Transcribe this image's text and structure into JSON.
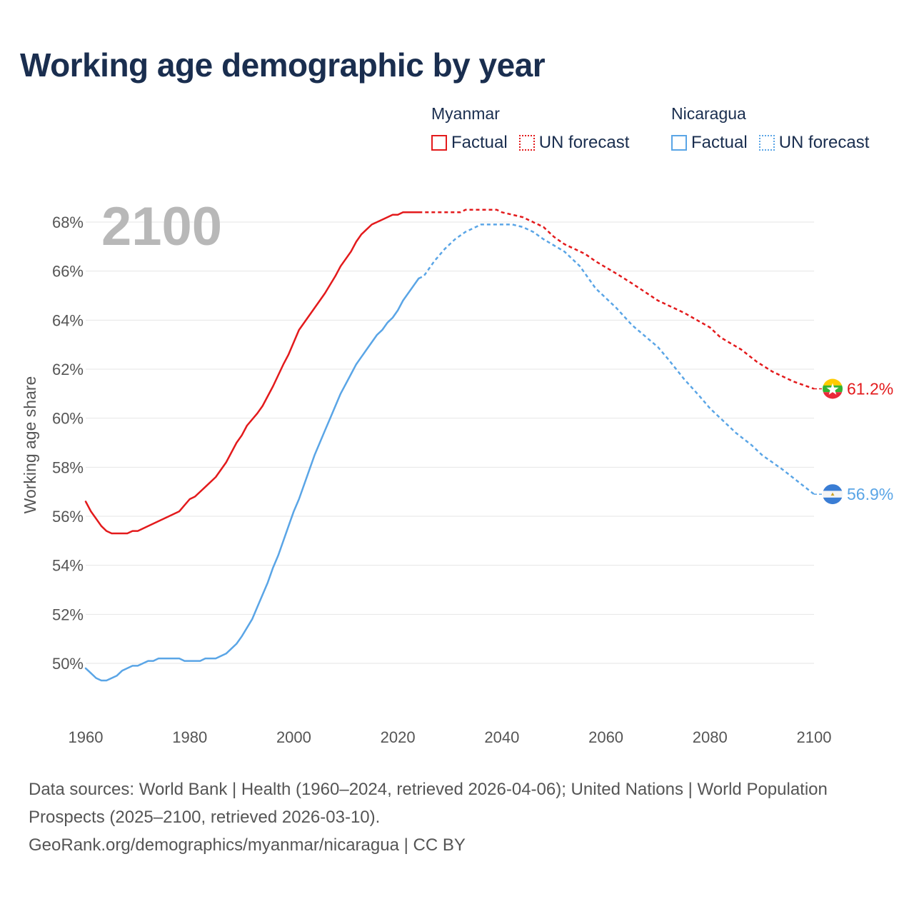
{
  "title": "Working age demographic by year",
  "legend": {
    "groups": [
      {
        "country": "Myanmar",
        "factual_label": "Factual",
        "forecast_label": "UN forecast",
        "color": "#e31a1c"
      },
      {
        "country": "Nicaragua",
        "factual_label": "Factual",
        "forecast_label": "UN forecast",
        "color": "#5aa5e6"
      }
    ]
  },
  "footer": {
    "sources": "Data sources: World Bank | Health (1960–2024, retrieved 2026-04-06); United Nations | World Population Prospects (2025–2100, retrieved 2026-03-10).",
    "link": "GeoRank.org/demographics/myanmar/nicaragua | CC BY"
  },
  "chart_data": {
    "type": "line",
    "title": "Working age demographic by year",
    "ylabel": "Working age share",
    "xlabel": "",
    "year_label": "2100",
    "xlim": [
      1960,
      2100
    ],
    "ylim": [
      48,
      70
    ],
    "x_ticks": [
      1960,
      1980,
      2000,
      2020,
      2040,
      2060,
      2080,
      2100
    ],
    "x_tick_labels": [
      "1960",
      "1980",
      "2000",
      "2020",
      "2040",
      "2060",
      "2080",
      "2100"
    ],
    "y_ticks": [
      50,
      52,
      54,
      56,
      58,
      60,
      62,
      64,
      66,
      68
    ],
    "y_tick_labels": [
      "50%",
      "52%",
      "54%",
      "56%",
      "58%",
      "60%",
      "62%",
      "64%",
      "66%",
      "68%"
    ],
    "factual_end_year": 2024,
    "series": [
      {
        "name": "Myanmar",
        "color": "#e31a1c",
        "end_label": "61.2%",
        "points": [
          [
            1960,
            56.6
          ],
          [
            1961,
            56.2
          ],
          [
            1962,
            55.9
          ],
          [
            1963,
            55.6
          ],
          [
            1964,
            55.4
          ],
          [
            1965,
            55.3
          ],
          [
            1966,
            55.3
          ],
          [
            1967,
            55.3
          ],
          [
            1968,
            55.3
          ],
          [
            1969,
            55.4
          ],
          [
            1970,
            55.4
          ],
          [
            1972,
            55.6
          ],
          [
            1974,
            55.8
          ],
          [
            1976,
            56.0
          ],
          [
            1978,
            56.2
          ],
          [
            1980,
            56.7
          ],
          [
            1981,
            56.8
          ],
          [
            1983,
            57.2
          ],
          [
            1985,
            57.6
          ],
          [
            1987,
            58.2
          ],
          [
            1989,
            59.0
          ],
          [
            1990,
            59.3
          ],
          [
            1991,
            59.7
          ],
          [
            1993,
            60.2
          ],
          [
            1994,
            60.5
          ],
          [
            1996,
            61.3
          ],
          [
            1998,
            62.2
          ],
          [
            1999,
            62.6
          ],
          [
            2000,
            63.1
          ],
          [
            2001,
            63.6
          ],
          [
            2003,
            64.2
          ],
          [
            2005,
            64.8
          ],
          [
            2006,
            65.1
          ],
          [
            2008,
            65.8
          ],
          [
            2009,
            66.2
          ],
          [
            2011,
            66.8
          ],
          [
            2012,
            67.2
          ],
          [
            2013,
            67.5
          ],
          [
            2015,
            67.9
          ],
          [
            2017,
            68.1
          ],
          [
            2019,
            68.3
          ],
          [
            2020,
            68.3
          ],
          [
            2021,
            68.4
          ],
          [
            2024,
            68.4
          ],
          [
            2032,
            68.4
          ],
          [
            2033,
            68.5
          ],
          [
            2039,
            68.5
          ],
          [
            2040,
            68.4
          ],
          [
            2044,
            68.2
          ],
          [
            2048,
            67.8
          ],
          [
            2050,
            67.4
          ],
          [
            2052,
            67.1
          ],
          [
            2056,
            66.7
          ],
          [
            2058,
            66.4
          ],
          [
            2062,
            65.9
          ],
          [
            2065,
            65.5
          ],
          [
            2070,
            64.8
          ],
          [
            2075,
            64.3
          ],
          [
            2080,
            63.7
          ],
          [
            2082,
            63.3
          ],
          [
            2086,
            62.8
          ],
          [
            2089,
            62.3
          ],
          [
            2092,
            61.9
          ],
          [
            2096,
            61.5
          ],
          [
            2100,
            61.2
          ]
        ]
      },
      {
        "name": "Nicaragua",
        "color": "#5aa5e6",
        "end_label": "56.9%",
        "points": [
          [
            1960,
            49.8
          ],
          [
            1961,
            49.6
          ],
          [
            1962,
            49.4
          ],
          [
            1963,
            49.3
          ],
          [
            1964,
            49.3
          ],
          [
            1966,
            49.5
          ],
          [
            1967,
            49.7
          ],
          [
            1969,
            49.9
          ],
          [
            1970,
            49.9
          ],
          [
            1972,
            50.1
          ],
          [
            1973,
            50.1
          ],
          [
            1974,
            50.2
          ],
          [
            1978,
            50.2
          ],
          [
            1979,
            50.1
          ],
          [
            1982,
            50.1
          ],
          [
            1983,
            50.2
          ],
          [
            1985,
            50.2
          ],
          [
            1987,
            50.4
          ],
          [
            1989,
            50.8
          ],
          [
            1990,
            51.1
          ],
          [
            1992,
            51.8
          ],
          [
            1993,
            52.3
          ],
          [
            1995,
            53.3
          ],
          [
            1996,
            53.9
          ],
          [
            1997,
            54.4
          ],
          [
            1999,
            55.6
          ],
          [
            2000,
            56.2
          ],
          [
            2001,
            56.7
          ],
          [
            2003,
            57.9
          ],
          [
            2004,
            58.5
          ],
          [
            2006,
            59.5
          ],
          [
            2007,
            60.0
          ],
          [
            2009,
            61.0
          ],
          [
            2011,
            61.8
          ],
          [
            2012,
            62.2
          ],
          [
            2014,
            62.8
          ],
          [
            2016,
            63.4
          ],
          [
            2017,
            63.6
          ],
          [
            2018,
            63.9
          ],
          [
            2019,
            64.1
          ],
          [
            2020,
            64.4
          ],
          [
            2021,
            64.8
          ],
          [
            2023,
            65.4
          ],
          [
            2024,
            65.7
          ],
          [
            2025,
            65.8
          ],
          [
            2027,
            66.4
          ],
          [
            2029,
            66.9
          ],
          [
            2031,
            67.3
          ],
          [
            2033,
            67.6
          ],
          [
            2035,
            67.8
          ],
          [
            2036,
            67.9
          ],
          [
            2042,
            67.9
          ],
          [
            2044,
            67.8
          ],
          [
            2046,
            67.6
          ],
          [
            2048,
            67.3
          ],
          [
            2052,
            66.8
          ],
          [
            2055,
            66.2
          ],
          [
            2058,
            65.3
          ],
          [
            2062,
            64.5
          ],
          [
            2065,
            63.8
          ],
          [
            2070,
            62.9
          ],
          [
            2072,
            62.4
          ],
          [
            2075,
            61.6
          ],
          [
            2078,
            60.9
          ],
          [
            2080,
            60.4
          ],
          [
            2085,
            59.4
          ],
          [
            2088,
            58.9
          ],
          [
            2090,
            58.5
          ],
          [
            2094,
            57.9
          ],
          [
            2097,
            57.4
          ],
          [
            2100,
            56.9
          ]
        ]
      }
    ]
  }
}
